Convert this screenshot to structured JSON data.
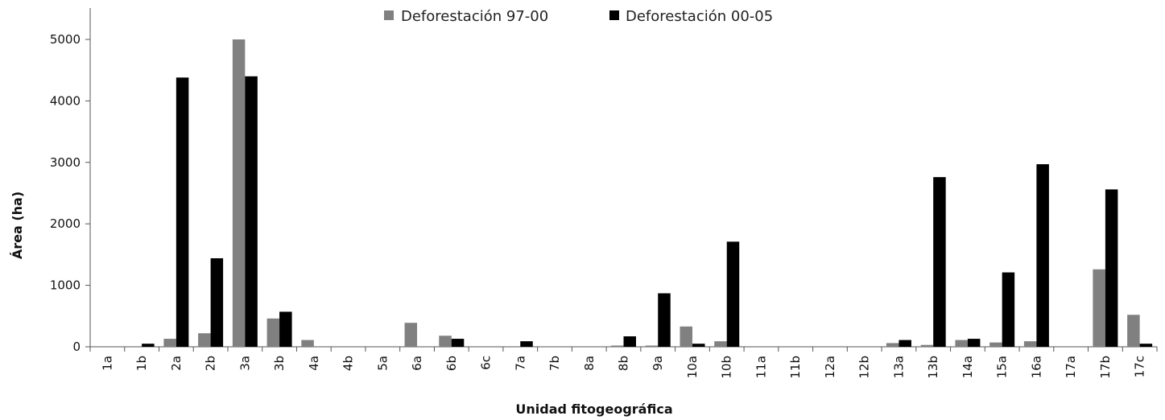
{
  "chart_data": {
    "type": "bar",
    "title": "",
    "xlabel": "Unidad fitogeográfica",
    "ylabel": "Área (ha)",
    "ylim": [
      0,
      5000
    ],
    "yticks": [
      0,
      1000,
      2000,
      3000,
      4000,
      5000
    ],
    "legend_position": "top-center",
    "grid": false,
    "categories": [
      "1a",
      "1b",
      "2a",
      "2b",
      "3a",
      "3b",
      "4a",
      "4b",
      "5a",
      "6a",
      "6b",
      "6c",
      "7a",
      "7b",
      "8a",
      "8b",
      "9a",
      "10a",
      "10b",
      "11a",
      "11b",
      "12a",
      "12b",
      "13a",
      "13b",
      "14a",
      "15a",
      "16a",
      "17a",
      "17b",
      "17c"
    ],
    "series": [
      {
        "name": "Deforestación 97-00",
        "color": "#808080",
        "values": [
          0,
          0,
          130,
          220,
          5000,
          460,
          110,
          0,
          0,
          390,
          180,
          0,
          0,
          0,
          0,
          20,
          20,
          330,
          90,
          0,
          0,
          0,
          0,
          60,
          30,
          110,
          70,
          90,
          0,
          1260,
          520
        ]
      },
      {
        "name": "Deforestación 00-05",
        "color": "#000000",
        "values": [
          0,
          50,
          4380,
          1440,
          4400,
          570,
          0,
          0,
          0,
          0,
          130,
          0,
          90,
          0,
          0,
          170,
          870,
          50,
          1710,
          0,
          0,
          0,
          0,
          110,
          2760,
          130,
          1210,
          2970,
          0,
          2560,
          50
        ]
      }
    ]
  }
}
